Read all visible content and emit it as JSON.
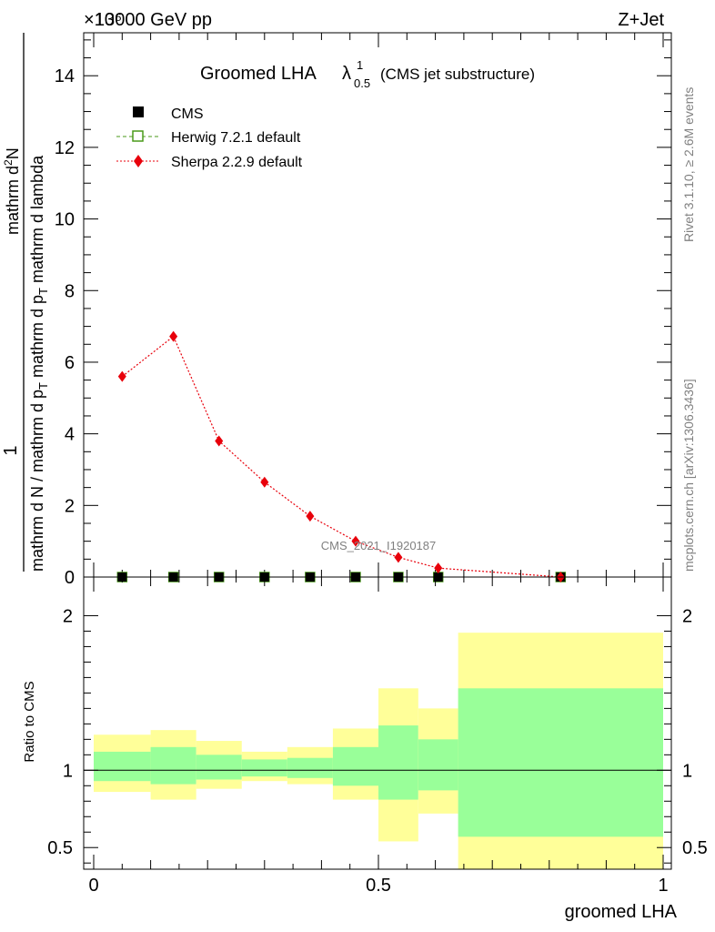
{
  "header": {
    "left": "13000 GeV pp",
    "right": "Z+Jet",
    "exponent_label": "×10⁶"
  },
  "side_text": {
    "rivet": "Rivet 3.1.10, ≥ 2.6M events",
    "mcplots": "mcplots.cern.ch [arXiv:1306.3436]"
  },
  "watermark": "CMS_2021_I1920187",
  "chart_data": [
    {
      "type": "scatter",
      "title_main": "Groomed LHA",
      "title_lambda": "λ",
      "title_sup": "1",
      "title_sub": "0.5",
      "title_suffix": "(CMS jet substructure)",
      "ylabel_num": "1",
      "ylabel_den": "mathrm d N / mathrm d p",
      "ylabel_den_sub": "T",
      "ylabel_num2": "mathrm d",
      "ylabel_num2_sup": "2",
      "ylabel_num2_rest": "N",
      "ylabel_den2": "mathrm d p",
      "ylabel_den2_sub": "T",
      "ylabel_den2_rest": "mathrm d lambda",
      "xlim": [
        0,
        1
      ],
      "ylim": [
        0,
        15.2
      ],
      "yticks": [
        0,
        2,
        4,
        6,
        8,
        10,
        12,
        14
      ],
      "ytick_labels": [
        "0",
        "2",
        "4",
        "6",
        "8",
        "10",
        "12",
        "14"
      ],
      "legend_position": "top-left",
      "series": [
        {
          "name": "CMS",
          "marker": "filled-square",
          "color": "#000000",
          "x": [
            0.05,
            0.14,
            0.22,
            0.3,
            0.38,
            0.46,
            0.535,
            0.605,
            0.82
          ],
          "y": [
            0,
            0,
            0,
            0,
            0,
            0,
            0,
            0,
            0
          ]
        },
        {
          "name": "Herwig 7.2.1 default",
          "marker": "open-square",
          "line": "dashed",
          "color": "#4a9a1a",
          "x": [
            0.05,
            0.14,
            0.22,
            0.3,
            0.38,
            0.46,
            0.535,
            0.605,
            0.82
          ],
          "y": [
            0,
            0,
            0,
            0,
            0,
            0,
            0,
            0,
            0
          ]
        },
        {
          "name": "Sherpa 2.2.9 default",
          "marker": "diamond",
          "line": "dotted",
          "color": "#e8000b",
          "x": [
            0.05,
            0.14,
            0.22,
            0.3,
            0.38,
            0.46,
            0.535,
            0.605,
            0.82
          ],
          "y": [
            5.6,
            6.72,
            3.8,
            2.65,
            1.7,
            1.0,
            0.55,
            0.25,
            0.0
          ]
        }
      ]
    },
    {
      "type": "area",
      "ylabel": "Ratio to CMS",
      "xlabel": "groomed LHA",
      "xlim": [
        0,
        1
      ],
      "ylim": [
        0.36,
        2.25
      ],
      "xticks": [
        0,
        0.5,
        1
      ],
      "xtick_labels": [
        "0",
        "0.5",
        "1"
      ],
      "yticks": [
        0.5,
        1,
        2
      ],
      "ytick_labels": [
        "0.5",
        "1",
        "2"
      ],
      "bins": [
        {
          "x0": 0.0,
          "x1": 0.1,
          "outer_lo": 0.86,
          "outer_hi": 1.23,
          "inner_lo": 0.93,
          "inner_hi": 1.12
        },
        {
          "x0": 0.1,
          "x1": 0.18,
          "outer_lo": 0.81,
          "outer_hi": 1.26,
          "inner_lo": 0.91,
          "inner_hi": 1.15
        },
        {
          "x0": 0.18,
          "x1": 0.26,
          "outer_lo": 0.88,
          "outer_hi": 1.19,
          "inner_lo": 0.94,
          "inner_hi": 1.1
        },
        {
          "x0": 0.26,
          "x1": 0.34,
          "outer_lo": 0.93,
          "outer_hi": 1.12,
          "inner_lo": 0.96,
          "inner_hi": 1.07
        },
        {
          "x0": 0.34,
          "x1": 0.42,
          "outer_lo": 0.91,
          "outer_hi": 1.15,
          "inner_lo": 0.95,
          "inner_hi": 1.08
        },
        {
          "x0": 0.42,
          "x1": 0.5,
          "outer_lo": 0.81,
          "outer_hi": 1.27,
          "inner_lo": 0.9,
          "inner_hi": 1.15
        },
        {
          "x0": 0.5,
          "x1": 0.57,
          "outer_lo": 0.54,
          "outer_hi": 1.53,
          "inner_lo": 0.81,
          "inner_hi": 1.29
        },
        {
          "x0": 0.57,
          "x1": 0.64,
          "outer_lo": 0.72,
          "outer_hi": 1.4,
          "inner_lo": 0.87,
          "inner_hi": 1.2
        },
        {
          "x0": 0.64,
          "x1": 1.0,
          "outer_lo": 0.36,
          "outer_hi": 1.89,
          "inner_lo": 0.57,
          "inner_hi": 1.53
        }
      ],
      "reference": 1,
      "colors": {
        "outer": "#ffff99",
        "inner": "#99ff99"
      }
    }
  ]
}
